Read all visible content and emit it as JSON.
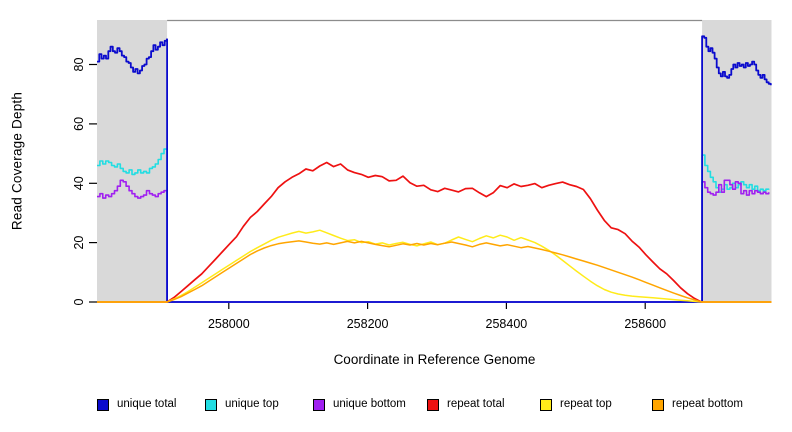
{
  "chart_data": {
    "type": "line",
    "title": "",
    "x_axis": {
      "title": "Coordinate in Reference Genome",
      "range": [
        257810,
        258782
      ],
      "ticks": [
        258000,
        258200,
        258400,
        258600
      ],
      "tick_labels": [
        "258000",
        "258200",
        "258400",
        "258600"
      ]
    },
    "y_axis": {
      "title": "Read Coverage Depth",
      "range": [
        0,
        95
      ],
      "ticks": [
        0,
        20,
        40,
        60,
        80
      ],
      "tick_labels": [
        "0",
        "20",
        "40",
        "60",
        "80"
      ]
    },
    "flank_regions": {
      "fill": "#D9D9D9",
      "boundary_line_color": "#8C8C8C",
      "regions": [
        {
          "x0": 257810,
          "x1": 257911
        },
        {
          "x0": 258682,
          "x1": 258782
        }
      ],
      "top_level": 95
    },
    "legend": {
      "items": [
        {
          "label": "unique total",
          "color": "#0B0BCD"
        },
        {
          "label": "unique top",
          "color": "#22DDE2"
        },
        {
          "label": "unique bottom",
          "color": "#A020F0"
        },
        {
          "label": "repeat total",
          "color": "#EE1111"
        },
        {
          "label": "repeat top",
          "color": "#FFEB1A"
        },
        {
          "label": "repeat bottom",
          "color": "#FFA500"
        }
      ]
    },
    "series": [
      {
        "name": "unique top",
        "color": "#22DDE2",
        "width": 1.6,
        "step": true,
        "segments": [
          {
            "x0": 257810,
            "dx": 4.2,
            "values": [
              46,
              47.5,
              46.5,
              47.5,
              47,
              46,
              45.5,
              46.5,
              45,
              44,
              43.5,
              44.5,
              43,
              43.5,
              44.5,
              43.5,
              44,
              43.5,
              45,
              45.5,
              46.5,
              48,
              50,
              51.5
            ]
          },
          {
            "points": [
              [
                257911,
                0
              ],
              [
                258682,
                0
              ]
            ]
          },
          {
            "x0": 258682,
            "dx": 4.0,
            "values": [
              49.5,
              46,
              44,
              42,
              40.5,
              38.5,
              37,
              38,
              39.5,
              38,
              38.5,
              40,
              38.5,
              39.5,
              40.5,
              39.5,
              38.5,
              39.5,
              38,
              39,
              37.5,
              38,
              37.5,
              38,
              37.8
            ]
          }
        ]
      },
      {
        "name": "unique bottom",
        "color": "#A020F0",
        "width": 1.6,
        "step": true,
        "segments": [
          {
            "x0": 257810,
            "dx": 4.2,
            "values": [
              35.5,
              36.5,
              35,
              36,
              35.5,
              36.5,
              37.5,
              39,
              41,
              40.5,
              39,
              37.5,
              36.5,
              35.5,
              35,
              35.5,
              36,
              37.5,
              36.5,
              36,
              35.5,
              36.5,
              37,
              37.5
            ]
          },
          {
            "points": [
              [
                257911,
                0
              ],
              [
                258682,
                0
              ]
            ]
          },
          {
            "x0": 258682,
            "dx": 4.0,
            "values": [
              40.5,
              38.5,
              37,
              36.5,
              36,
              37,
              39.5,
              37,
              41,
              41,
              39.5,
              38,
              40.5,
              40,
              36.5,
              37.5,
              36,
              37.5,
              36.5,
              37.5,
              37,
              36.5,
              37,
              36.5,
              37
            ]
          }
        ]
      },
      {
        "name": "unique total",
        "color": "#0B0BCD",
        "width": 1.8,
        "step": true,
        "segments": [
          {
            "x0": 257810,
            "dx": 3.25,
            "values": [
              81,
              83.5,
              82,
              83,
              82,
              84.5,
              86,
              84.5,
              84,
              85.5,
              84.5,
              83,
              82.5,
              81,
              80.5,
              79,
              77.5,
              78.5,
              77,
              78,
              79.5,
              80,
              82,
              82.5,
              84.5,
              86.5,
              85,
              86,
              87.5,
              86.5,
              88,
              88.5
            ]
          },
          {
            "points": [
              [
                257911,
                0
              ],
              [
                258682,
                0
              ]
            ]
          },
          {
            "x0": 258682,
            "dx": 3.0,
            "values": [
              89.5,
              89,
              86,
              84.5,
              85.5,
              84,
              82,
              79,
              77,
              76,
              77.5,
              76,
              75.5,
              76.5,
              78.5,
              80,
              79,
              80.5,
              79.5,
              80,
              79,
              80.5,
              79.5,
              80,
              81,
              80,
              78,
              76.5,
              75.5,
              76.5,
              75,
              74,
              73.5,
              73
            ]
          }
        ]
      },
      {
        "name": "repeat total",
        "color": "#EE1111",
        "width": 1.7,
        "step": false,
        "segments": [
          {
            "points": [
              [
                257810,
                0
              ],
              [
                257911,
                0
              ]
            ]
          },
          {
            "x0": 257911,
            "dx": 10,
            "values": [
              0,
              1.5,
              3.5,
              5.5,
              7.5,
              9.5,
              12,
              14.5,
              17,
              19.5,
              22,
              25.5,
              28.5,
              30.5,
              33,
              35.5,
              38.5,
              40.5,
              42,
              43.2,
              44.8,
              44.2,
              45.8,
              47,
              45.6,
              46.5,
              44.5,
              43.6,
              43,
              42,
              42.6,
              42.2,
              40.8,
              41,
              42.4,
              40.2,
              39,
              39.3,
              37.8,
              37.2,
              38.3,
              37.7,
              37.1,
              38.2,
              38.3,
              36.8,
              35.5,
              36.8,
              39.2,
              38.5,
              39.8,
              38.9,
              39.3,
              39.9,
              38.5,
              39.3,
              39.9,
              40.4,
              39.5,
              38.9,
              37.9,
              34.8,
              31,
              27.5,
              25,
              24.4,
              23,
              20.5,
              18.5,
              15.9,
              13.5,
              11.2,
              9.5,
              7.2,
              4.8,
              2.8,
              1.2,
              0
            ]
          },
          {
            "points": [
              [
                258682,
                0
              ],
              [
                258782,
                0
              ]
            ]
          }
        ]
      },
      {
        "name": "repeat top",
        "color": "#FFEB1A",
        "width": 1.5,
        "step": false,
        "segments": [
          {
            "points": [
              [
                257810,
                0
              ],
              [
                257911,
                0
              ]
            ]
          },
          {
            "x0": 257911,
            "dx": 10,
            "values": [
              0,
              1,
              2.2,
              3.5,
              5,
              6.5,
              8,
              9.5,
              11,
              12.5,
              14,
              15.5,
              17,
              18.3,
              19.5,
              20.8,
              21.8,
              22.5,
              23.2,
              23.8,
              23.2,
              23.6,
              24.2,
              23.3,
              22.4,
              21.5,
              20.7,
              21,
              20,
              20.3,
              19.5,
              19.9,
              19.2,
              19.7,
              20.1,
              19.4,
              18.9,
              19.6,
              20.2,
              19.3,
              19.8,
              20.9,
              21.9,
              21.1,
              20.3,
              21.4,
              22.3,
              21.6,
              22.5,
              21.9,
              20.8,
              21.7,
              20.9,
              20,
              18.8,
              17.4,
              15.8,
              14,
              12.2,
              10.4,
              8.7,
              7,
              5.5,
              4.2,
              3.3,
              2.7,
              2.3,
              2,
              1.8,
              1.6,
              1.4,
              1.2,
              1,
              0.8,
              0.6,
              0.4,
              0.2,
              0
            ]
          },
          {
            "points": [
              [
                258682,
                0
              ],
              [
                258782,
                0
              ]
            ]
          }
        ]
      },
      {
        "name": "repeat bottom",
        "color": "#FFA500",
        "width": 1.5,
        "step": false,
        "segments": [
          {
            "points": [
              [
                257810,
                0
              ],
              [
                257911,
                0
              ]
            ]
          },
          {
            "x0": 257911,
            "dx": 10,
            "values": [
              0,
              0.8,
              1.8,
              3,
              4.2,
              5.5,
              7,
              8.5,
              10,
              11.5,
              13,
              14.5,
              16,
              17.2,
              18.2,
              19,
              19.6,
              20,
              20.3,
              20.6,
              20.2,
              19.8,
              19.5,
              19.9,
              19.4,
              19.9,
              20.4,
              19.9,
              20.4,
              19.9,
              19.4,
              19,
              18.6,
              19.1,
              19.6,
              19.2,
              19.7,
              19.2,
              19.7,
              19.3,
              19.8,
              20.2,
              19.7,
              19.2,
              18.6,
              19.4,
              19.9,
              19.4,
              18.9,
              19.3,
              18.8,
              18.3,
              18.7,
              18.2,
              17.7,
              17.1,
              16.5,
              15.9,
              15.2,
              14.5,
              13.8,
              13.1,
              12.4,
              11.6,
              10.8,
              10,
              9.2,
              8.4,
              7.5,
              6.6,
              5.7,
              4.8,
              3.9,
              3,
              2.2,
              1.4,
              0.7,
              0
            ]
          },
          {
            "points": [
              [
                258682,
                0
              ],
              [
                258782,
                0
              ]
            ]
          }
        ]
      }
    ]
  }
}
